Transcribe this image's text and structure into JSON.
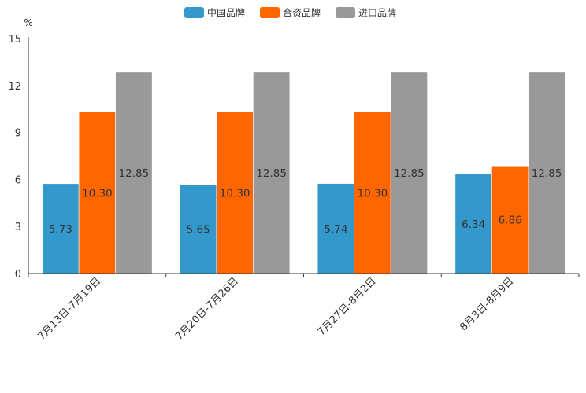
{
  "chart_data": {
    "type": "bar",
    "title": "",
    "unit_label": "%",
    "xlabel": "",
    "ylabel": "%",
    "ylim": [
      0,
      15
    ],
    "y_ticks": [
      "0",
      "3",
      "6",
      "9",
      "12",
      "15"
    ],
    "y_tick_values": [
      0,
      3,
      6,
      9,
      12,
      15
    ],
    "grid": false,
    "legend_position": "top-center",
    "categories": [
      "7月13日-7月19日",
      "7月20日-7月26日",
      "7月27日-8月2日",
      "8月3日-8月9日"
    ],
    "series": [
      {
        "name": "中国品牌",
        "color": "#3399cc",
        "values": [
          5.73,
          5.65,
          5.74,
          6.34
        ],
        "labels": [
          "5.73",
          "5.65",
          "5.74",
          "6.34"
        ]
      },
      {
        "name": "合资品牌",
        "color": "#ff6600",
        "values": [
          10.3,
          10.3,
          10.3,
          6.86
        ],
        "labels": [
          "10.30",
          "10.30",
          "10.30",
          "6.86"
        ]
      },
      {
        "name": "进口品牌",
        "color": "#999999",
        "values": [
          12.85,
          12.85,
          12.85,
          12.85
        ],
        "labels": [
          "12.85",
          "12.85",
          "12.85",
          "12.85"
        ]
      }
    ]
  }
}
